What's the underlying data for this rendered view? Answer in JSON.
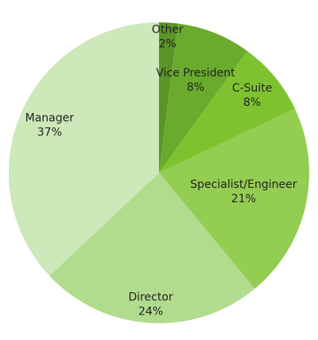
{
  "chart_data": {
    "type": "pie",
    "categories": [
      "Other",
      "Vice President",
      "C-Suite",
      "Specialist/Engineer",
      "Director",
      "Manager"
    ],
    "values": [
      2,
      8,
      8,
      21,
      24,
      37
    ],
    "value_labels": [
      "2%",
      "8%",
      "8%",
      "21%",
      "24%",
      "37%"
    ],
    "colors": [
      "#5b9429",
      "#6aab2e",
      "#7ec32f",
      "#93cd52",
      "#b1dc8d",
      "#cde8b9"
    ]
  }
}
